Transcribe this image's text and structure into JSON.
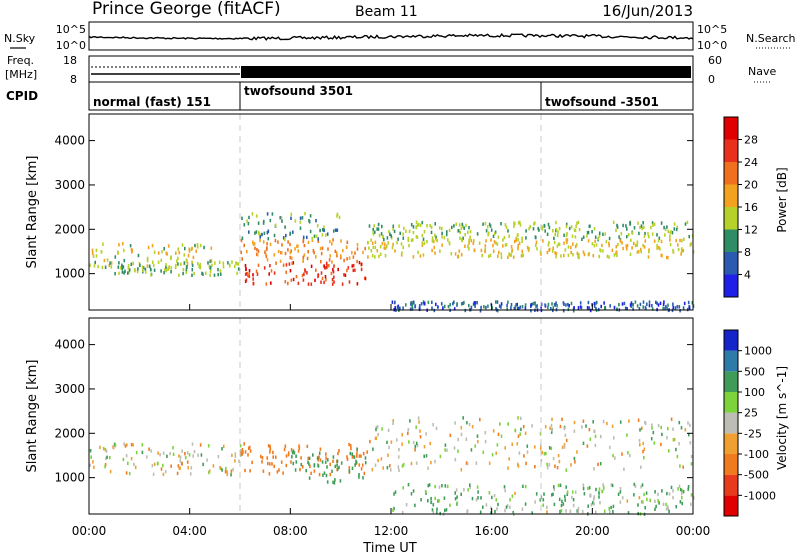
{
  "header": {
    "station": "Prince George (fitACF)",
    "beam": "Beam 11",
    "date": "16/Jun/2013"
  },
  "panel_noise": {
    "left_label": "N.Sky",
    "left_ticks": [
      "10^5",
      "10^0"
    ],
    "right_ticks": [
      "10^5",
      "10^0"
    ],
    "right_label": "N.Search"
  },
  "panel_freq": {
    "left_label_1": "Freq.",
    "left_label_2": "[MHz]",
    "left_ticks": [
      "18",
      "8"
    ],
    "right_ticks": [
      "60",
      "0"
    ],
    "right_label": "Nave"
  },
  "panel_cpid": {
    "label": "CPID",
    "modes": [
      {
        "name": "normal (fast) 151",
        "start_hour": 0
      },
      {
        "name": "twofsound 3501",
        "start_hour": 6
      },
      {
        "name": "twofsound -3501",
        "start_hour": 18
      }
    ]
  },
  "x_axis": {
    "label": "Time UT",
    "ticks": [
      "00:00",
      "04:00",
      "08:00",
      "12:00",
      "16:00",
      "20:00",
      "00:00"
    ],
    "range_hours": [
      0,
      24
    ]
  },
  "power_colorbar": {
    "label": "Power [dB]",
    "ticks": [
      "4",
      "8",
      "12",
      "16",
      "20",
      "24",
      "28"
    ],
    "colors": [
      "#1f1fe8",
      "#2a5bb0",
      "#2f8c64",
      "#b6d22a",
      "#f2a21e",
      "#f07020",
      "#e8301c",
      "#e00000"
    ]
  },
  "velocity_colorbar": {
    "label": "Velocity [m s^-1]",
    "ticks": [
      "1000",
      "500",
      "100",
      "25",
      "-25",
      "-100",
      "-500",
      "-1000"
    ],
    "colors": [
      "#1424c8",
      "#2e7aa8",
      "#3f9c58",
      "#7cd33b",
      "#bdbdb6",
      "#f0a030",
      "#f07a1e",
      "#e83a1c",
      "#e00000"
    ]
  },
  "chart_data": [
    {
      "type": "heatmap",
      "title": "Power",
      "xlabel": "Time UT",
      "ylabel": "Slant Range [km]",
      "xlim": [
        0,
        24
      ],
      "ylim": [
        180,
        4600
      ],
      "yticks": [
        "1000",
        "2000",
        "3000",
        "4000"
      ],
      "colorbar": "Power [dB]",
      "bands": [
        {
          "t": [
            0,
            5
          ],
          "range_km": [
            1150,
            1750
          ],
          "level_db": 14
        },
        {
          "t": [
            1,
            6
          ],
          "range_km": [
            1000,
            1300
          ],
          "level_db": 12
        },
        {
          "t": [
            6,
            11
          ],
          "range_km": [
            800,
            1300
          ],
          "level_db": 26
        },
        {
          "t": [
            6,
            11
          ],
          "range_km": [
            1300,
            1800
          ],
          "level_db": 20
        },
        {
          "t": [
            6,
            10
          ],
          "range_km": [
            1800,
            2400
          ],
          "level_db": 10
        },
        {
          "t": [
            11,
            24
          ],
          "range_km": [
            1800,
            2200
          ],
          "level_db": 12
        },
        {
          "t": [
            11,
            24
          ],
          "range_km": [
            1400,
            1800
          ],
          "level_db": 16
        },
        {
          "t": [
            12,
            24
          ],
          "range_km": [
            200,
            400
          ],
          "level_db": 6
        }
      ]
    },
    {
      "type": "heatmap",
      "title": "Velocity",
      "xlabel": "Time UT",
      "ylabel": "Slant Range [km]",
      "xlim": [
        0,
        24
      ],
      "ylim": [
        180,
        4600
      ],
      "yticks": [
        "1000",
        "2000",
        "3000",
        "4000"
      ],
      "colorbar": "Velocity [m s^-1]",
      "bands": [
        {
          "t": [
            0,
            6
          ],
          "range_km": [
            1100,
            1800
          ],
          "velocity_ms": 0
        },
        {
          "t": [
            6,
            11
          ],
          "range_km": [
            1100,
            1800
          ],
          "velocity_ms": -150
        },
        {
          "t": [
            8,
            11
          ],
          "range_km": [
            900,
            1700
          ],
          "velocity_ms": 150
        },
        {
          "t": [
            11,
            24
          ],
          "range_km": [
            1200,
            2400
          ],
          "velocity_ms": 0
        },
        {
          "t": [
            12,
            24
          ],
          "range_km": [
            200,
            900
          ],
          "velocity_ms": 60
        }
      ]
    }
  ]
}
